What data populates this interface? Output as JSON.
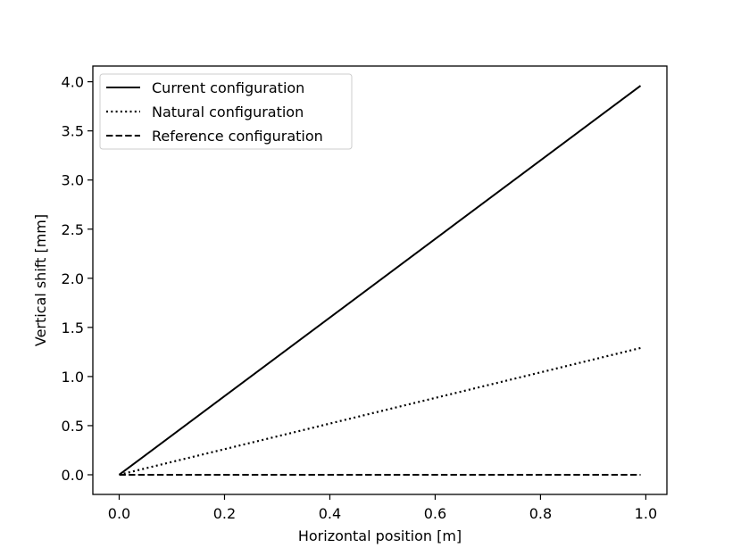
{
  "chart_data": {
    "type": "line",
    "title": "",
    "xlabel": "Horizontal position [m]",
    "ylabel": "Vertical shift [mm]",
    "xlim": [
      -0.05,
      1.04
    ],
    "ylim": [
      -0.2,
      4.16
    ],
    "xticks": [
      0.0,
      0.2,
      0.4,
      0.6,
      0.8,
      1.0
    ],
    "xtick_labels": [
      "0.0",
      "0.2",
      "0.4",
      "0.6",
      "0.8",
      "1.0"
    ],
    "yticks": [
      0.0,
      0.5,
      1.0,
      1.5,
      2.0,
      2.5,
      3.0,
      3.5,
      4.0
    ],
    "ytick_labels": [
      "0.0",
      "0.5",
      "1.0",
      "1.5",
      "2.0",
      "2.5",
      "3.0",
      "3.5",
      "4.0"
    ],
    "grid": false,
    "legend_position": "top-left",
    "line_color": "#000000",
    "series": [
      {
        "name": "Current configuration",
        "style": "solid",
        "x": [
          0.0,
          0.99
        ],
        "y": [
          0.0,
          3.96
        ]
      },
      {
        "name": "Natural configuration",
        "style": "dotted",
        "x": [
          0.0,
          0.99
        ],
        "y": [
          0.0,
          1.29
        ]
      },
      {
        "name": "Reference configuration",
        "style": "dashed",
        "x": [
          0.0,
          0.99
        ],
        "y": [
          0.0,
          0.0
        ]
      }
    ]
  }
}
